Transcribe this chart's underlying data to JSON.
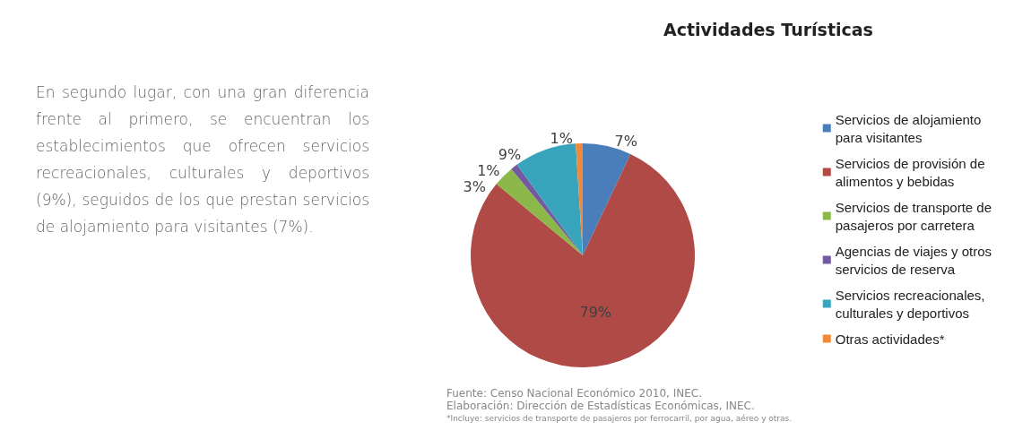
{
  "chart_data": {
    "type": "pie",
    "title": "Actividades Turísticas",
    "categories": [
      "Servicios de alojamiento para visitantes",
      "Servicios de provisión de alimentos y bebidas",
      "Servicios de transporte de pasajeros por carretera",
      "Agencias de viajes y otros servicios de reserva",
      "Servicios recreacionales, culturales y deportivos",
      "Otras actividades*"
    ],
    "values": [
      7,
      79,
      3,
      1,
      9,
      1
    ],
    "colors": [
      "#4a7ebb",
      "#b04a47",
      "#8cb84a",
      "#7259a0",
      "#38a5bd",
      "#f08a3a"
    ],
    "value_labels": [
      "7%",
      "79%",
      "3%",
      "1%",
      "9%",
      "1%"
    ],
    "legend": "right",
    "annotations": [
      "En segundo lugar, con una gran diferencia frente al primero, se encuentran los establecimientos que ofrecen servicios recreacionales, culturales y deportivos (9%), seguidos de los que prestan servicios de alojamiento para visitantes (7%).",
      "Fuente: Censo Nacional Económico 2010, INEC.",
      "Elaboración: Dirección de Estadísticas Económicas, INEC.",
      "*Incluye: servicios de transporte de pasajeros por ferrocarril, por agua, aéreo y otras."
    ]
  }
}
